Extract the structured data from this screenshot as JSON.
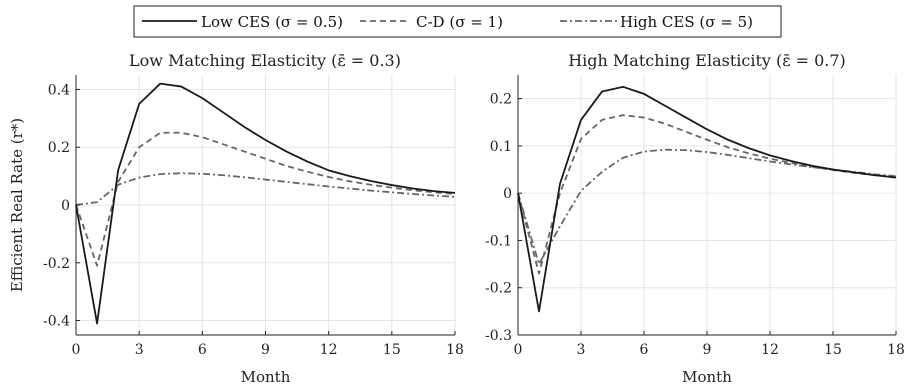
{
  "legend": {
    "entries": [
      {
        "label": "Low CES (σ = 0.5)",
        "color": "#1a1a1a",
        "dash": "solid"
      },
      {
        "label": "C-D (σ = 1)",
        "color": "#666666",
        "dash": "dashed"
      },
      {
        "label": "High CES (σ = 5)",
        "color": "#666666",
        "dash": "dashdot"
      }
    ]
  },
  "chart_data": [
    {
      "type": "line",
      "title": "Low Matching Elasticity (ε̄ = 0.3)",
      "xlabel": "Month",
      "ylabel": "Efficient Real Rate (r*)",
      "xlim": [
        0,
        18
      ],
      "ylim": [
        -0.45,
        0.45
      ],
      "xticks": [
        0,
        3,
        6,
        9,
        12,
        15,
        18
      ],
      "yticks": [
        -0.4,
        -0.2,
        0,
        0.2,
        0.4
      ],
      "ytick_labels": [
        "-0.4",
        "-0.2",
        "0",
        "0.2",
        "0.4"
      ],
      "grid": true,
      "x": [
        0,
        1,
        2,
        3,
        4,
        5,
        6,
        7,
        8,
        9,
        10,
        11,
        12,
        13,
        14,
        15,
        16,
        17,
        18
      ],
      "series": [
        {
          "name": "Low CES (σ = 0.5)",
          "values": [
            0,
            -0.41,
            0.12,
            0.35,
            0.42,
            0.41,
            0.37,
            0.32,
            0.27,
            0.225,
            0.185,
            0.15,
            0.12,
            0.1,
            0.083,
            0.069,
            0.057,
            0.048,
            0.042
          ]
        },
        {
          "name": "C-D (σ = 1)",
          "values": [
            0,
            -0.21,
            0.08,
            0.2,
            0.25,
            0.25,
            0.235,
            0.21,
            0.185,
            0.16,
            0.135,
            0.115,
            0.097,
            0.082,
            0.07,
            0.06,
            0.051,
            0.044,
            0.038
          ]
        },
        {
          "name": "High CES (σ = 5)",
          "values": [
            0,
            0.01,
            0.07,
            0.095,
            0.107,
            0.11,
            0.108,
            0.103,
            0.096,
            0.088,
            0.08,
            0.072,
            0.064,
            0.057,
            0.05,
            0.044,
            0.038,
            0.033,
            0.028
          ]
        }
      ]
    },
    {
      "type": "line",
      "title": "High Matching Elasticity (ε̄ = 0.7)",
      "xlabel": "Month",
      "ylabel": "",
      "xlim": [
        0,
        18
      ],
      "ylim": [
        -0.3,
        0.25
      ],
      "xticks": [
        0,
        3,
        6,
        9,
        12,
        15,
        18
      ],
      "yticks": [
        -0.3,
        -0.2,
        -0.1,
        0,
        0.1,
        0.2
      ],
      "ytick_labels": [
        "-0.3",
        "-0.2",
        "-0.1",
        "0",
        "0.1",
        "0.2"
      ],
      "grid": true,
      "x": [
        0,
        1,
        2,
        3,
        4,
        5,
        6,
        7,
        8,
        9,
        10,
        11,
        12,
        13,
        14,
        15,
        16,
        17,
        18
      ],
      "series": [
        {
          "name": "Low CES (σ = 0.5)",
          "values": [
            0,
            -0.25,
            0.02,
            0.155,
            0.215,
            0.225,
            0.21,
            0.185,
            0.16,
            0.135,
            0.113,
            0.095,
            0.08,
            0.068,
            0.058,
            0.05,
            0.044,
            0.038,
            0.033
          ]
        },
        {
          "name": "C-D (σ = 1)",
          "values": [
            0,
            -0.17,
            0.0,
            0.115,
            0.155,
            0.165,
            0.16,
            0.147,
            0.13,
            0.113,
            0.097,
            0.084,
            0.073,
            0.064,
            0.056,
            0.049,
            0.043,
            0.038,
            0.034
          ]
        },
        {
          "name": "High CES (σ = 5)",
          "values": [
            0,
            -0.15,
            -0.07,
            0.005,
            0.045,
            0.075,
            0.088,
            0.092,
            0.091,
            0.087,
            0.081,
            0.074,
            0.067,
            0.061,
            0.055,
            0.05,
            0.045,
            0.04,
            0.036
          ]
        }
      ]
    }
  ]
}
